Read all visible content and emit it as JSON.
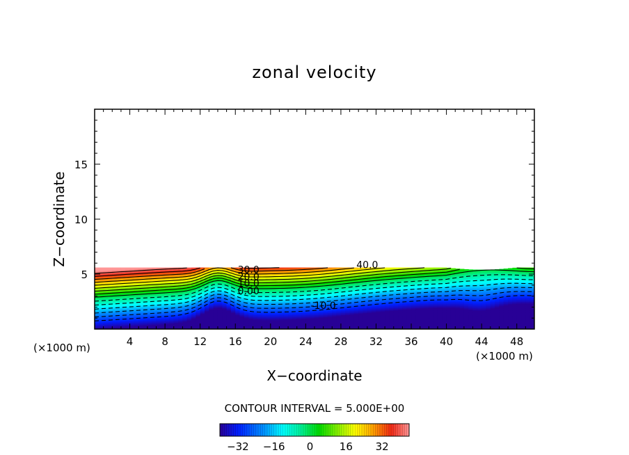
{
  "chart_data": {
    "type": "contour",
    "title": "zonal velocity",
    "xlabel": "X−coordinate",
    "ylabel": "Z−coordinate",
    "x_unit_left": "(×1000 m)",
    "x_unit_right": "(×1000 m)",
    "xlim": [
      0,
      50
    ],
    "ylim": [
      0,
      20
    ],
    "x_ticks": [
      4,
      8,
      12,
      16,
      20,
      24,
      28,
      32,
      36,
      40,
      44,
      48
    ],
    "x_tick_labels": [
      "4",
      "8",
      "12",
      "16",
      "20",
      "24",
      "28",
      "32",
      "36",
      "40",
      "44",
      "48"
    ],
    "y_ticks": [
      5,
      10,
      15
    ],
    "y_tick_labels": [
      "5",
      "10",
      "15"
    ],
    "contour_interval_text": "CONTOUR INTERVAL = 5.000E+00",
    "contour_interval": 5,
    "contour_labels": [
      {
        "text": "40.0",
        "x": 31.0,
        "y": 5.55
      },
      {
        "text": "30.0",
        "x": 17.5,
        "y": 5.1
      },
      {
        "text": "20.0",
        "x": 17.5,
        "y": 4.45
      },
      {
        "text": "10.0",
        "x": 17.5,
        "y": 3.85
      },
      {
        "text": "0.00",
        "x": 17.5,
        "y": 3.15
      },
      {
        "text": "-10.0",
        "x": 26.0,
        "y": 1.85
      }
    ],
    "colorbar": {
      "min": -40,
      "max": 44,
      "tick_values": [
        -32,
        -16,
        0,
        16,
        32
      ],
      "tick_labels": [
        "−32",
        "−16",
        "0",
        "16",
        "32"
      ]
    },
    "grid": false
  }
}
